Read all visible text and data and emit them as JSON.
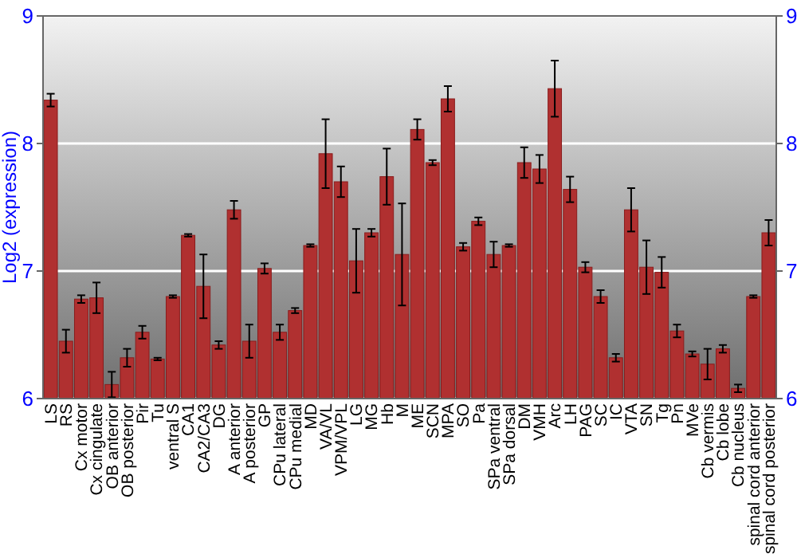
{
  "chart_data": {
    "type": "bar",
    "ylabel": "Log2 (expression)",
    "categories": [
      "LS",
      "RS",
      "Cx motor",
      "Cx cingulate",
      "OB anterior",
      "OB posterior",
      "Pir",
      "Tu",
      "ventral S",
      "CA1",
      "CA2/CA3",
      "DG",
      "A anterior",
      "A posterior",
      "GP",
      "CPu lateral",
      "CPu medial",
      "MD",
      "VA/VL",
      "VPM/VPL",
      "LG",
      "MG",
      "Hb",
      "M",
      "ME",
      "SCN",
      "MPA",
      "SO",
      "Pa",
      "SPa ventral",
      "SPa dorsal",
      "DM",
      "VMH",
      "Arc",
      "LH",
      "PAG",
      "SC",
      "IC",
      "VTA",
      "SN",
      "Tg",
      "Pn",
      "MVe",
      "Cb vermis",
      "Cb lobe",
      "Cb nucleus",
      "spinal cord anterior",
      "spinal cord posterior"
    ],
    "values": [
      8.34,
      6.45,
      6.78,
      6.79,
      6.11,
      6.32,
      6.52,
      6.31,
      6.8,
      7.28,
      6.88,
      6.42,
      7.48,
      6.45,
      7.02,
      6.52,
      6.69,
      7.2,
      7.92,
      7.7,
      7.08,
      7.3,
      7.74,
      7.13,
      8.11,
      7.85,
      8.35,
      7.19,
      7.39,
      7.13,
      7.2,
      7.85,
      7.8,
      8.43,
      7.64,
      7.03,
      6.8,
      6.32,
      7.48,
      7.03,
      6.99,
      6.53,
      6.35,
      6.27,
      6.39,
      6.08,
      6.8,
      7.3
    ],
    "errors": [
      0.05,
      0.09,
      0.03,
      0.12,
      0.1,
      0.07,
      0.05,
      0.01,
      0.01,
      0.01,
      0.25,
      0.03,
      0.07,
      0.13,
      0.04,
      0.06,
      0.02,
      0.01,
      0.27,
      0.12,
      0.25,
      0.03,
      0.22,
      0.4,
      0.08,
      0.02,
      0.1,
      0.03,
      0.03,
      0.1,
      0.01,
      0.12,
      0.11,
      0.22,
      0.1,
      0.04,
      0.05,
      0.03,
      0.17,
      0.21,
      0.12,
      0.05,
      0.02,
      0.12,
      0.03,
      0.03,
      0.01,
      0.1
    ],
    "color": "#b03030",
    "ylim": [
      6,
      9
    ],
    "yticks": [
      6,
      7,
      8,
      9
    ],
    "y2lim": [
      6,
      9
    ],
    "y2ticks": [
      6,
      7,
      8,
      9
    ],
    "grid": "y"
  }
}
